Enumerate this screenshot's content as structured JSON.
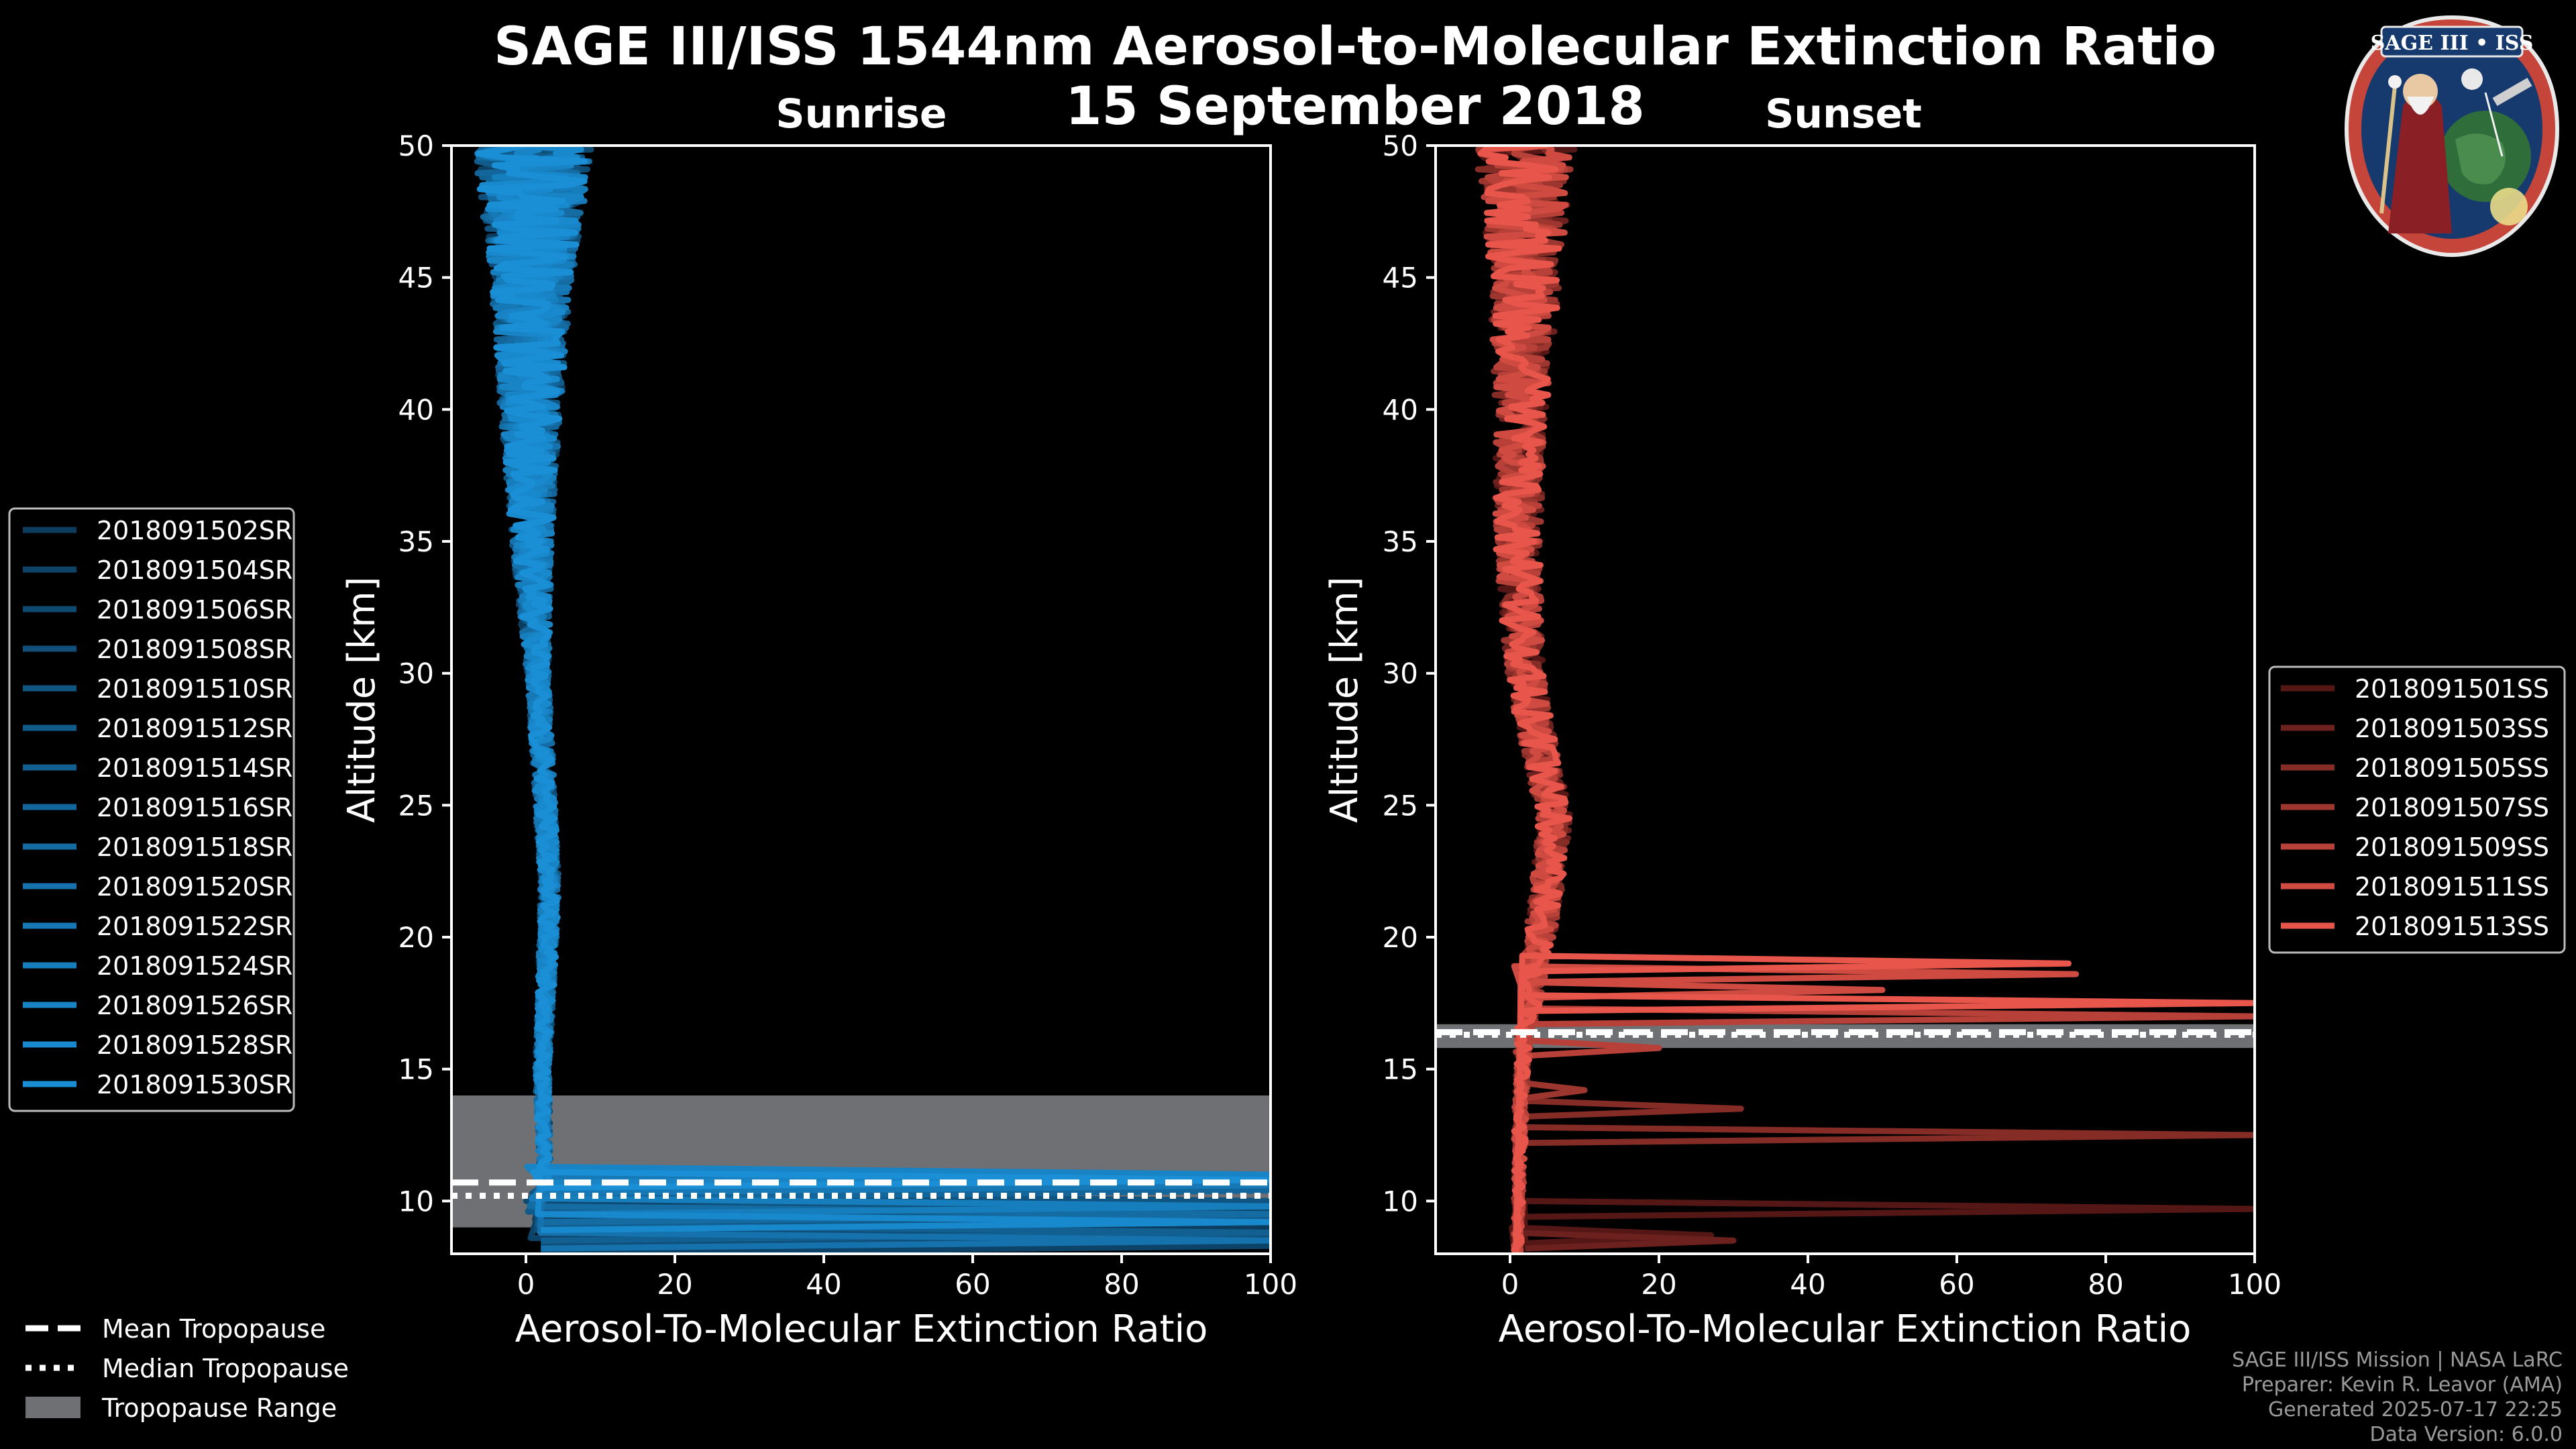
{
  "figure": {
    "title_line1": "SAGE III/ISS 1544nm Aerosol-to-Molecular Extinction Ratio",
    "title_line2": "15 September 2018",
    "credits": [
      "SAGE III/ISS Mission | NASA LaRC",
      "Preparer: Kevin R. Leavor (AMA)",
      "Generated 2025-07-17 22:25",
      "Data Version: 6.0.0"
    ],
    "logo_text": "SAGE III • ISS"
  },
  "colors": {
    "background": "#000000",
    "sunrise_line": "#1a8fd6",
    "sunset_line": "#e8554a",
    "tropopause_range": "#6e7074"
  },
  "common_legend": [
    {
      "label": "Mean Tropopause",
      "style": "dashed"
    },
    {
      "label": "Median Tropopause",
      "style": "dotted"
    },
    {
      "label": "Tropopause Range",
      "style": "patch"
    }
  ],
  "chart_data": [
    {
      "type": "line",
      "title": "Sunrise",
      "xlabel": "Aerosol-To-Molecular Extinction Ratio",
      "ylabel": "Altitude [km]",
      "xlim": [
        -10,
        100
      ],
      "ylim": [
        8,
        50
      ],
      "xticks": [
        0,
        20,
        40,
        60,
        80,
        100
      ],
      "yticks": [
        10,
        15,
        20,
        25,
        30,
        35,
        40,
        45,
        50
      ],
      "grid": false,
      "legend_position": "left",
      "tropopause": {
        "mean": 10.7,
        "median": 10.2,
        "range": [
          9.0,
          14.0
        ]
      },
      "profile_shape": {
        "baseline": [
          [
            11.5,
            2.5
          ],
          [
            15,
            2.2
          ],
          [
            20,
            3
          ],
          [
            22,
            3.2
          ],
          [
            25,
            2.6
          ],
          [
            30,
            1.6
          ],
          [
            35,
            0.8
          ],
          [
            40,
            0.6
          ],
          [
            45,
            0.8
          ],
          [
            50,
            1
          ]
        ],
        "noise": [
          [
            11.5,
            0.8
          ],
          [
            20,
            1.2
          ],
          [
            30,
            1.5
          ],
          [
            38,
            3.5
          ],
          [
            45,
            5.5
          ],
          [
            50,
            8
          ]
        ]
      },
      "series": [
        {
          "name": "2018091502SR",
          "low_segments": [
            [
              9.0,
              100
            ]
          ]
        },
        {
          "name": "2018091504SR",
          "low_segments": [
            [
              8.3,
              100
            ]
          ]
        },
        {
          "name": "2018091506SR",
          "low_segments": [
            [
              9.7,
              100
            ]
          ]
        },
        {
          "name": "2018091508SR",
          "low_segments": [
            [
              8.6,
              100
            ]
          ]
        },
        {
          "name": "2018091510SR",
          "low_segments": [
            [
              10.0,
              100
            ]
          ]
        },
        {
          "name": "2018091512SR",
          "low_segments": [
            [
              9.3,
              100
            ]
          ]
        },
        {
          "name": "2018091514SR",
          "low_segments": [
            [
              8.8,
              100
            ]
          ]
        },
        {
          "name": "2018091516SR",
          "low_segments": [
            [
              10.4,
              100
            ]
          ]
        },
        {
          "name": "2018091518SR",
          "low_segments": [
            [
              9.5,
              100
            ]
          ]
        },
        {
          "name": "2018091520SR",
          "low_segments": [
            [
              8.5,
              100
            ]
          ]
        },
        {
          "name": "2018091522SR",
          "low_segments": [
            [
              10.6,
              100
            ]
          ]
        },
        {
          "name": "2018091524SR",
          "low_segments": [
            [
              9.8,
              100
            ]
          ]
        },
        {
          "name": "2018091526SR",
          "low_segments": [
            [
              11.0,
              100
            ]
          ]
        },
        {
          "name": "2018091528SR",
          "low_segments": [
            [
              9.2,
              100
            ]
          ]
        },
        {
          "name": "2018091530SR",
          "low_segments": [
            [
              10.8,
              100
            ]
          ]
        }
      ]
    },
    {
      "type": "line",
      "title": "Sunset",
      "xlabel": "Aerosol-To-Molecular Extinction Ratio",
      "ylabel": "Altitude [km]",
      "xlim": [
        -10,
        100
      ],
      "ylim": [
        8,
        50
      ],
      "xticks": [
        0,
        20,
        40,
        60,
        80,
        100
      ],
      "yticks": [
        10,
        15,
        20,
        25,
        30,
        35,
        40,
        45,
        50
      ],
      "grid": false,
      "legend_position": "right",
      "tropopause": {
        "mean": 16.4,
        "median": 16.3,
        "range": [
          15.8,
          16.7
        ]
      },
      "profile_shape": {
        "baseline": [
          [
            8,
            1
          ],
          [
            15,
            1.5
          ],
          [
            16.5,
            2
          ],
          [
            18,
            3
          ],
          [
            20,
            4
          ],
          [
            22,
            5
          ],
          [
            24.5,
            6
          ],
          [
            27,
            4
          ],
          [
            30,
            2
          ],
          [
            35,
            1
          ],
          [
            40,
            1.5
          ],
          [
            45,
            2
          ],
          [
            50,
            2
          ]
        ],
        "noise": [
          [
            8,
            0.5
          ],
          [
            16,
            1
          ],
          [
            20,
            2
          ],
          [
            30,
            2.5
          ],
          [
            40,
            3.5
          ],
          [
            46,
            5
          ],
          [
            50,
            7
          ]
        ]
      },
      "series": [
        {
          "name": "2018091501SS",
          "low_segments": [
            [
              8.7,
              27
            ],
            [
              9.7,
              100
            ]
          ]
        },
        {
          "name": "2018091503SS",
          "low_segments": [
            [
              8.5,
              30
            ]
          ]
        },
        {
          "name": "2018091505SS",
          "low_segments": [
            [
              12.5,
              100
            ],
            [
              13.5,
              31
            ]
          ]
        },
        {
          "name": "2018091507SS",
          "low_segments": [
            [
              14.2,
              10
            ]
          ]
        },
        {
          "name": "2018091509SS",
          "low_segments": [
            [
              15.8,
              20
            ],
            [
              17.0,
              100
            ]
          ]
        },
        {
          "name": "2018091511SS",
          "low_segments": [
            [
              18.0,
              50
            ],
            [
              18.6,
              76
            ]
          ]
        },
        {
          "name": "2018091513SS",
          "low_segments": [
            [
              19.0,
              75
            ],
            [
              17.5,
              100
            ]
          ]
        }
      ]
    }
  ]
}
